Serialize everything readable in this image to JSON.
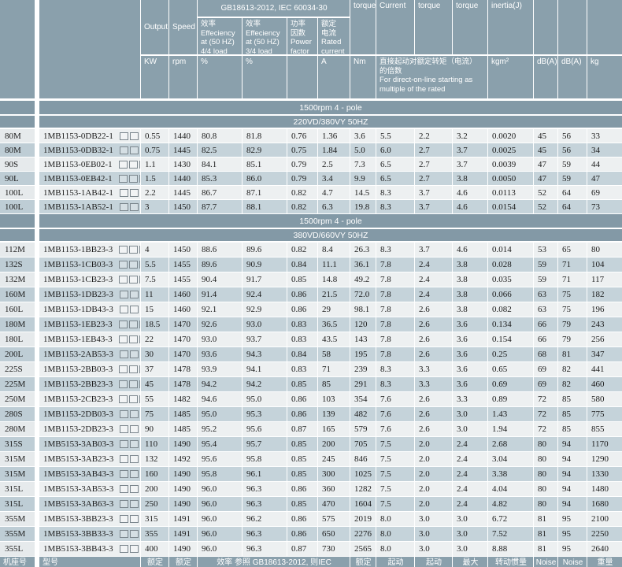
{
  "table": {
    "header": {
      "top": {
        "output": "Output",
        "speed": "Speed",
        "gb_standard": "GB18613-2012, IEC 60034-30",
        "torque": "torque",
        "current": "Current",
        "torque2": "torque",
        "torque3": "torque",
        "inertia": "inertia(J)"
      },
      "sub": {
        "eff_44": "效率\nEffeciency\nat (50 HZ)\n4/4 load",
        "eff_34": "效率\nEffeciency\nat (50 HZ)\n3/4 load",
        "power_factor": "功率\n因数\nPower\nfactor",
        "rated_current": "额定\n电流\nRated\ncurrent"
      },
      "units": {
        "kw": "KW",
        "rpm": "rpm",
        "pct1": "%",
        "pct2": "%",
        "a": "A",
        "nm": "Nm",
        "dol_note": "直接起动对额定转矩（电流）\n的倍数\nFor direct-on-line starting as\nmultiple of the rated",
        "kgm2": "kgm²",
        "db1": "dB(A)",
        "db2": "dB(A)",
        "kg": "kg"
      }
    },
    "sections": [
      {
        "pole_band": "1500rpm 4 - pole",
        "voltage_band": "220VD/380VY  50HZ",
        "rows": [
          {
            "frame": "80M",
            "model": "1MB1153-0DB22-1",
            "values": [
              "0.55",
              "1440",
              "80.8",
              "81.8",
              "0.76",
              "1.36",
              "3.6",
              "5.5",
              "2.2",
              "3.2",
              "0.0020",
              "45",
              "56",
              "33"
            ]
          },
          {
            "frame": "80M",
            "model": "1MB1153-0DB32-1",
            "values": [
              "0.75",
              "1445",
              "82.5",
              "82.9",
              "0.75",
              "1.84",
              "5.0",
              "6.0",
              "2.7",
              "3.7",
              "0.0025",
              "45",
              "56",
              "34"
            ]
          },
          {
            "frame": "90S",
            "model": "1MB1153-0EB02-1",
            "values": [
              "1.1",
              "1430",
              "84.1",
              "85.1",
              "0.79",
              "2.5",
              "7.3",
              "6.5",
              "2.7",
              "3.7",
              "0.0039",
              "47",
              "59",
              "44"
            ]
          },
          {
            "frame": "90L",
            "model": "1MB1153-0EB42-1",
            "values": [
              "1.5",
              "1440",
              "85.3",
              "86.0",
              "0.79",
              "3.4",
              "9.9",
              "6.5",
              "2.7",
              "3.8",
              "0.0050",
              "47",
              "59",
              "47"
            ]
          },
          {
            "frame": "100L",
            "model": "1MB1153-1AB42-1",
            "values": [
              "2.2",
              "1445",
              "86.7",
              "87.1",
              "0.82",
              "4.7",
              "14.5",
              "8.3",
              "3.7",
              "4.6",
              "0.0113",
              "52",
              "64",
              "69"
            ]
          },
          {
            "frame": "100L",
            "model": "1MB1153-1AB52-1",
            "values": [
              "3",
              "1450",
              "87.7",
              "88.1",
              "0.82",
              "6.3",
              "19.8",
              "8.3",
              "3.7",
              "4.6",
              "0.0154",
              "52",
              "64",
              "73"
            ]
          }
        ]
      },
      {
        "pole_band": "1500rpm 4 - pole",
        "voltage_band": "380VD/660VY  50HZ",
        "rows": [
          {
            "frame": "112M",
            "model": "1MB1153-1BB23-3",
            "values": [
              "4",
              "1450",
              "88.6",
              "89.6",
              "0.82",
              "8.4",
              "26.3",
              "8.3",
              "3.7",
              "4.6",
              "0.014",
              "53",
              "65",
              "80"
            ]
          },
          {
            "frame": "132S",
            "model": "1MB1153-1CB03-3",
            "values": [
              "5.5",
              "1455",
              "89.6",
              "90.9",
              "0.84",
              "11.1",
              "36.1",
              "7.8",
              "2.4",
              "3.8",
              "0.028",
              "59",
              "71",
              "104"
            ]
          },
          {
            "frame": "132M",
            "model": "1MB1153-1CB23-3",
            "values": [
              "7.5",
              "1455",
              "90.4",
              "91.7",
              "0.85",
              "14.8",
              "49.2",
              "7.8",
              "2.4",
              "3.8",
              "0.035",
              "59",
              "71",
              "117"
            ]
          },
          {
            "frame": "160M",
            "model": "1MB1153-1DB23-3",
            "values": [
              "11",
              "1460",
              "91.4",
              "92.4",
              "0.86",
              "21.5",
              "72.0",
              "7.8",
              "2.4",
              "3.8",
              "0.066",
              "63",
              "75",
              "182"
            ]
          },
          {
            "frame": "160L",
            "model": "1MB1153-1DB43-3",
            "values": [
              "15",
              "1460",
              "92.1",
              "92.9",
              "0.86",
              "29",
              "98.1",
              "7.8",
              "2.6",
              "3.8",
              "0.082",
              "63",
              "75",
              "196"
            ]
          },
          {
            "frame": "180M",
            "model": "1MB1153-1EB23-3",
            "values": [
              "18.5",
              "1470",
              "92.6",
              "93.0",
              "0.83",
              "36.5",
              "120",
              "7.8",
              "2.6",
              "3.6",
              "0.134",
              "66",
              "79",
              "243"
            ]
          },
          {
            "frame": "180L",
            "model": "1MB1153-1EB43-3",
            "values": [
              "22",
              "1470",
              "93.0",
              "93.7",
              "0.83",
              "43.5",
              "143",
              "7.8",
              "2.6",
              "3.6",
              "0.154",
              "66",
              "79",
              "256"
            ]
          },
          {
            "frame": "200L",
            "model": "1MB1153-2AB53-3",
            "values": [
              "30",
              "1470",
              "93.6",
              "94.3",
              "0.84",
              "58",
              "195",
              "7.8",
              "2.6",
              "3.6",
              "0.25",
              "68",
              "81",
              "347"
            ]
          },
          {
            "frame": "225S",
            "model": "1MB1153-2BB03-3",
            "values": [
              "37",
              "1478",
              "93.9",
              "94.1",
              "0.83",
              "71",
              "239",
              "8.3",
              "3.3",
              "3.6",
              "0.65",
              "69",
              "82",
              "441"
            ]
          },
          {
            "frame": "225M",
            "model": "1MB1153-2BB23-3",
            "values": [
              "45",
              "1478",
              "94.2",
              "94.2",
              "0.85",
              "85",
              "291",
              "8.3",
              "3.3",
              "3.6",
              "0.69",
              "69",
              "82",
              "460"
            ]
          },
          {
            "frame": "250M",
            "model": "1MB1153-2CB23-3",
            "values": [
              "55",
              "1482",
              "94.6",
              "95.0",
              "0.86",
              "103",
              "354",
              "7.6",
              "2.6",
              "3.3",
              "0.89",
              "72",
              "85",
              "580"
            ]
          },
          {
            "frame": "280S",
            "model": "1MB1153-2DB03-3",
            "values": [
              "75",
              "1485",
              "95.0",
              "95.3",
              "0.86",
              "139",
              "482",
              "7.6",
              "2.6",
              "3.0",
              "1.43",
              "72",
              "85",
              "775"
            ]
          },
          {
            "frame": "280M",
            "model": "1MB1153-2DB23-3",
            "values": [
              "90",
              "1485",
              "95.2",
              "95.6",
              "0.87",
              "165",
              "579",
              "7.6",
              "2.6",
              "3.0",
              "1.94",
              "72",
              "85",
              "855"
            ]
          },
          {
            "frame": "315S",
            "model": "1MB5153-3AB03-3",
            "values": [
              "110",
              "1490",
              "95.4",
              "95.7",
              "0.85",
              "200",
              "705",
              "7.5",
              "2.0",
              "2.4",
              "2.68",
              "80",
              "94",
              "1170"
            ]
          },
          {
            "frame": "315M",
            "model": "1MB5153-3AB23-3",
            "values": [
              "132",
              "1492",
              "95.6",
              "95.8",
              "0.85",
              "245",
              "846",
              "7.5",
              "2.0",
              "2.4",
              "3.04",
              "80",
              "94",
              "1290"
            ]
          },
          {
            "frame": "315M",
            "model": "1MB5153-3AB43-3",
            "values": [
              "160",
              "1490",
              "95.8",
              "96.1",
              "0.85",
              "300",
              "1025",
              "7.5",
              "2.0",
              "2.4",
              "3.38",
              "80",
              "94",
              "1330"
            ]
          },
          {
            "frame": "315L",
            "model": "1MB5153-3AB53-3",
            "values": [
              "200",
              "1490",
              "96.0",
              "96.3",
              "0.86",
              "360",
              "1282",
              "7.5",
              "2.0",
              "2.4",
              "4.04",
              "80",
              "94",
              "1480"
            ]
          },
          {
            "frame": "315L",
            "model": "1MB5153-3AB63-3",
            "values": [
              "250",
              "1490",
              "96.0",
              "96.3",
              "0.85",
              "470",
              "1604",
              "7.5",
              "2.0",
              "2.4",
              "4.82",
              "80",
              "94",
              "1680"
            ]
          },
          {
            "frame": "355M",
            "model": "1MB5153-3BB23-3",
            "values": [
              "315",
              "1491",
              "96.0",
              "96.2",
              "0.86",
              "575",
              "2019",
              "8.0",
              "3.0",
              "3.0",
              "6.72",
              "81",
              "95",
              "2100"
            ]
          },
          {
            "frame": "355M",
            "model": "1MB5153-3BB33-3",
            "values": [
              "355",
              "1491",
              "96.0",
              "96.3",
              "0.86",
              "650",
              "2276",
              "8.0",
              "3.0",
              "3.0",
              "7.52",
              "81",
              "95",
              "2250"
            ]
          },
          {
            "frame": "355L",
            "model": "1MB5153-3BB43-3",
            "values": [
              "400",
              "1490",
              "96.0",
              "96.3",
              "0.87",
              "730",
              "2565",
              "8.0",
              "3.0",
              "3.0",
              "8.88",
              "81",
              "95",
              "2640"
            ]
          }
        ]
      }
    ],
    "footer_row": {
      "frame": "机座号",
      "model": "型号",
      "rated1": "额定",
      "rated2": "额定",
      "eff_ref": "效率  参照 GB18613-2012, 则IEC",
      "rated3": "额定",
      "start1": "起动",
      "start2": "起动",
      "max": "最大",
      "inertia": "转动惯量",
      "noise1": "Noise",
      "noise2": "Noise",
      "weight": "重量"
    }
  }
}
